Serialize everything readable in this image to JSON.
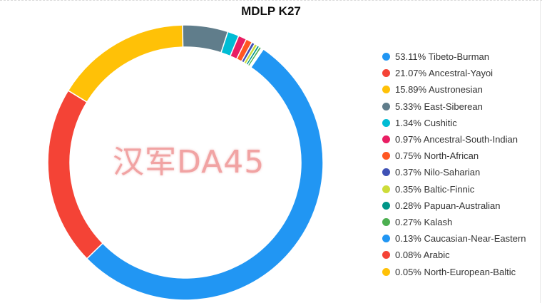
{
  "chart_data": {
    "type": "pie",
    "variant": "donut",
    "title": "MDLP K27",
    "legend_position": "right",
    "watermark": "汉军DA45",
    "slices": [
      {
        "label": "53.11% Tibeto-Burman",
        "value": 53.11,
        "color": "#2196F3"
      },
      {
        "label": "21.07% Ancestral-Yayoi",
        "value": 21.07,
        "color": "#F44336"
      },
      {
        "label": "15.89% Austronesian",
        "value": 15.89,
        "color": "#FFC107"
      },
      {
        "label": "5.33% East-Siberean",
        "value": 5.33,
        "color": "#607D8B"
      },
      {
        "label": "1.34% Cushitic",
        "value": 1.34,
        "color": "#00BCD4"
      },
      {
        "label": "0.97% Ancestral-South-Indian",
        "value": 0.97,
        "color": "#E91E63"
      },
      {
        "label": "0.75% North-African",
        "value": 0.75,
        "color": "#FF5722"
      },
      {
        "label": "0.37% Nilo-Saharian",
        "value": 0.37,
        "color": "#3F51B5"
      },
      {
        "label": "0.35% Baltic-Finnic",
        "value": 0.35,
        "color": "#CDDC39"
      },
      {
        "label": "0.28% Papuan-Australian",
        "value": 0.28,
        "color": "#009688"
      },
      {
        "label": "0.27% Kalash",
        "value": 0.27,
        "color": "#4CAF50"
      },
      {
        "label": "0.13% Caucasian-Near-Eastern",
        "value": 0.13,
        "color": "#2196F3"
      },
      {
        "label": "0.08% Arabic",
        "value": 0.08,
        "color": "#F44336"
      },
      {
        "label": "0.05% North-European-Baltic",
        "value": 0.05,
        "color": "#FFC107"
      }
    ]
  }
}
